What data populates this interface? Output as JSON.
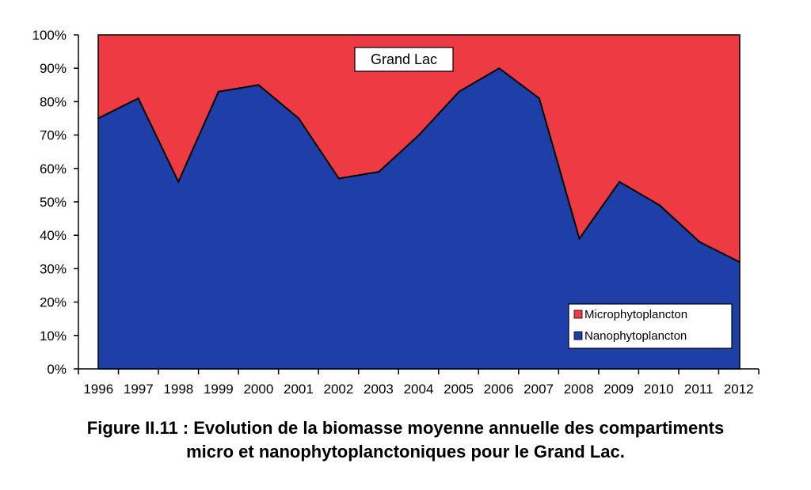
{
  "chart_data": {
    "type": "area",
    "stacked": true,
    "percent": true,
    "title": "Grand Lac",
    "x": [
      "1996",
      "1997",
      "1998",
      "1999",
      "2000",
      "2001",
      "2002",
      "2003",
      "2004",
      "2005",
      "2006",
      "2007",
      "2008",
      "2009",
      "2010",
      "2011",
      "2012"
    ],
    "series": [
      {
        "name": "Nanophytoplancton",
        "color": "#1f3fa8",
        "values": [
          75,
          81,
          56,
          83,
          85,
          75,
          57,
          59,
          70,
          83,
          90,
          81,
          39,
          56,
          49,
          38,
          32
        ]
      },
      {
        "name": "Microphytoplancton",
        "color": "#ee3a43",
        "values": [
          25,
          19,
          44,
          17,
          15,
          25,
          43,
          41,
          30,
          17,
          10,
          19,
          61,
          44,
          51,
          62,
          68
        ]
      }
    ],
    "ylim": [
      0,
      100
    ],
    "yticks": [
      "0%",
      "10%",
      "20%",
      "30%",
      "40%",
      "50%",
      "60%",
      "70%",
      "80%",
      "90%",
      "100%"
    ],
    "legend_position": "bottom-right",
    "grid": false
  },
  "caption": {
    "line1": "Figure II.11 : Evolution de la biomasse moyenne annuelle des compartiments",
    "line2": "micro et nanophytoplanctoniques pour le Grand Lac."
  }
}
